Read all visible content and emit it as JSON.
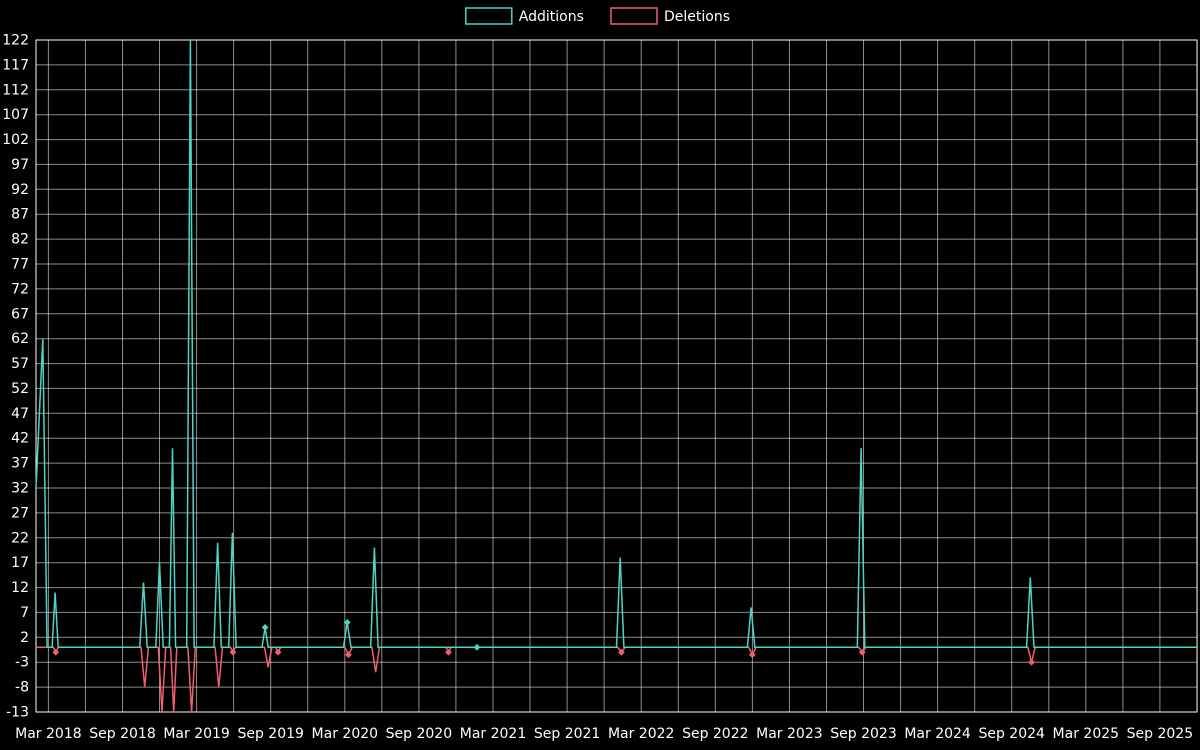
{
  "page": {
    "background_color": "#000000",
    "text_color": "#ffffff"
  },
  "chart_data": {
    "type": "line",
    "title": "",
    "legend_position": "top-center",
    "grid": true,
    "background": "#000000",
    "text_color": "#ffffff",
    "grid_color": "rgba(255,255,255,0.55)",
    "border_color": "#ffffff",
    "legend": [
      "Additions",
      "Deletions"
    ],
    "x_axis": {
      "unit": "months since Mar 2018",
      "domain": [
        -1,
        93
      ],
      "tick_positions": [
        0,
        6,
        12,
        18,
        24,
        30,
        36,
        42,
        48,
        54,
        60,
        66,
        72,
        78,
        84,
        90
      ],
      "tick_labels": [
        "Mar 2018",
        "Sep 2018",
        "Mar 2019",
        "Sep 2019",
        "Mar 2020",
        "Sep 2020",
        "Mar 2021",
        "Sep 2021",
        "Mar 2022",
        "Sep 2022",
        "Mar 2023",
        "Sep 2023",
        "Mar 2024",
        "Sep 2024",
        "Mar 2025",
        "Sep 2025"
      ],
      "minor_grid_step": 3
    },
    "y_axis": {
      "domain": [
        -13,
        122
      ],
      "tick_step": 5,
      "ticks": [
        -13,
        -8,
        -3,
        2,
        7,
        12,
        17,
        22,
        27,
        32,
        37,
        42,
        47,
        52,
        57,
        62,
        67,
        72,
        77,
        82,
        87,
        92,
        97,
        102,
        107,
        112,
        117,
        122
      ]
    },
    "series": [
      {
        "name": "Additions",
        "color": "#4fd4c4",
        "points": [
          [
            -1,
            32
          ],
          [
            -0.45,
            62
          ],
          [
            -0.1,
            0
          ],
          [
            0.3,
            0
          ],
          [
            0.55,
            11
          ],
          [
            0.8,
            0
          ],
          [
            7.4,
            0
          ],
          [
            7.7,
            13
          ],
          [
            8,
            0
          ],
          [
            8.7,
            0
          ],
          [
            9,
            17
          ],
          [
            9.3,
            0
          ],
          [
            9.8,
            0
          ],
          [
            10.05,
            40
          ],
          [
            10.3,
            0
          ],
          [
            11.2,
            0
          ],
          [
            11.5,
            122
          ],
          [
            11.8,
            0
          ],
          [
            13.4,
            0
          ],
          [
            13.7,
            21
          ],
          [
            14,
            0
          ],
          [
            14.6,
            0
          ],
          [
            14.9,
            23
          ],
          [
            15.2,
            0
          ],
          [
            17.3,
            0
          ],
          [
            17.55,
            4,
            1
          ],
          [
            17.8,
            0
          ],
          [
            23.9,
            0
          ],
          [
            24.2,
            5,
            1
          ],
          [
            24.5,
            0
          ],
          [
            26.1,
            0
          ],
          [
            26.4,
            20
          ],
          [
            26.7,
            0
          ],
          [
            34.7,
            0,
            1
          ],
          [
            46,
            0
          ],
          [
            46.3,
            18
          ],
          [
            46.6,
            0
          ],
          [
            56.6,
            0
          ],
          [
            56.9,
            8
          ],
          [
            57.2,
            0
          ],
          [
            65.5,
            0
          ],
          [
            65.8,
            40
          ],
          [
            66.1,
            0
          ],
          [
            79.2,
            0
          ],
          [
            79.5,
            14
          ],
          [
            79.8,
            0
          ],
          [
            93,
            0
          ]
        ]
      },
      {
        "name": "Deletions",
        "color": "#ef5f70",
        "points": [
          [
            -1,
            0
          ],
          [
            0.4,
            0
          ],
          [
            0.6,
            -1,
            1
          ],
          [
            0.8,
            0
          ],
          [
            7.5,
            0
          ],
          [
            7.8,
            -8
          ],
          [
            8.1,
            0
          ],
          [
            8.9,
            0
          ],
          [
            9.2,
            -13
          ],
          [
            9.5,
            0
          ],
          [
            9.9,
            0
          ],
          [
            10.15,
            -13
          ],
          [
            10.4,
            0
          ],
          [
            11.3,
            0
          ],
          [
            11.6,
            -13
          ],
          [
            11.9,
            0
          ],
          [
            13.5,
            0
          ],
          [
            13.8,
            -8
          ],
          [
            14.1,
            0
          ],
          [
            14.75,
            0
          ],
          [
            14.95,
            -1,
            1
          ],
          [
            15.15,
            0
          ],
          [
            17.5,
            0
          ],
          [
            17.8,
            -4
          ],
          [
            18.1,
            0
          ],
          [
            18.4,
            0
          ],
          [
            18.6,
            -1,
            1
          ],
          [
            18.8,
            0
          ],
          [
            24,
            0
          ],
          [
            24.3,
            -1.5,
            1
          ],
          [
            24.6,
            0
          ],
          [
            26.2,
            0
          ],
          [
            26.5,
            -5
          ],
          [
            26.8,
            0
          ],
          [
            32.2,
            0
          ],
          [
            32.4,
            -1,
            1
          ],
          [
            32.6,
            0
          ],
          [
            46.1,
            0
          ],
          [
            46.4,
            -1,
            1
          ],
          [
            46.7,
            0
          ],
          [
            56.7,
            0
          ],
          [
            57,
            -1.5,
            1
          ],
          [
            57.3,
            0
          ],
          [
            65.6,
            0
          ],
          [
            65.9,
            -1,
            1
          ],
          [
            66.2,
            0
          ],
          [
            79.3,
            0
          ],
          [
            79.6,
            -3,
            1
          ],
          [
            79.9,
            0
          ],
          [
            93,
            0
          ]
        ]
      }
    ]
  }
}
